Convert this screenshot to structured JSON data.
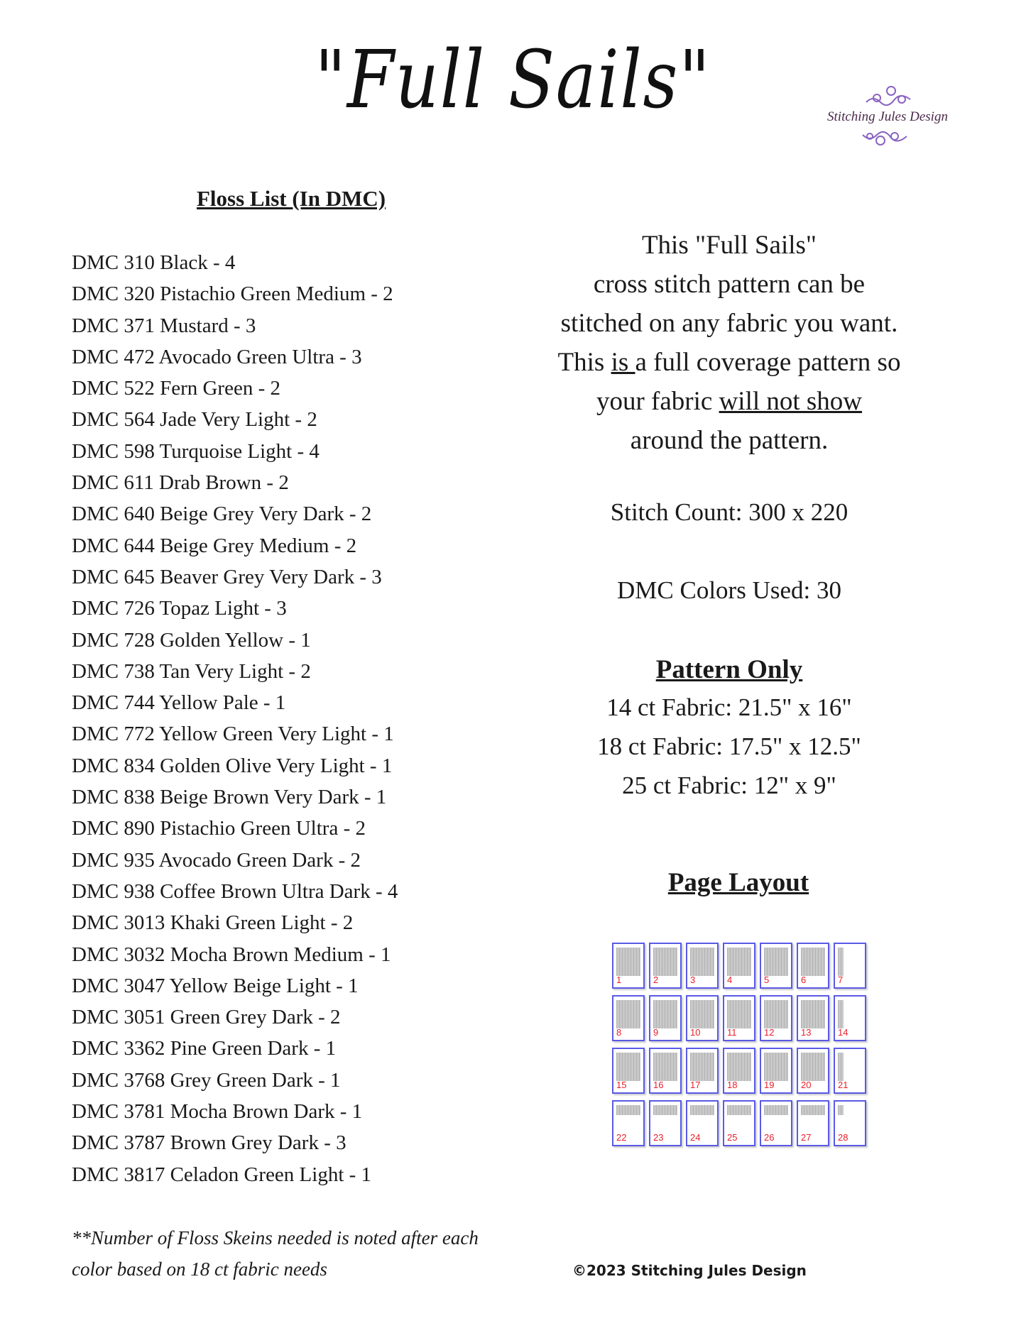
{
  "title": "\"Full Sails\"",
  "logo": {
    "text": "Stitching Jules Design",
    "color": "#7a4fb0"
  },
  "floss": {
    "heading": "Floss List (In DMC)",
    "items": [
      "DMC 310 Black - 4",
      "DMC 320 Pistachio Green Medium - 2",
      "DMC 371 Mustard - 3",
      "DMC 472 Avocado Green Ultra - 3",
      "DMC 522 Fern Green - 2",
      "DMC 564 Jade Very Light - 2",
      "DMC 598 Turquoise Light - 4",
      "DMC 611 Drab Brown - 2",
      "DMC 640 Beige Grey Very Dark - 2",
      "DMC 644 Beige Grey Medium - 2",
      "DMC 645 Beaver Grey Very Dark - 3",
      "DMC 726 Topaz Light - 3",
      "DMC 728 Golden Yellow - 1",
      "DMC 738 Tan Very Light - 2",
      "DMC 744 Yellow Pale - 1",
      "DMC 772 Yellow Green Very Light - 1",
      "DMC 834 Golden Olive Very Light - 1",
      "DMC 838 Beige Brown Very Dark - 1",
      "DMC 890 Pistachio Green Ultra - 2",
      "DMC 935 Avocado Green Dark - 2",
      "DMC 938 Coffee Brown Ultra Dark - 4",
      "DMC 3013 Khaki Green Light - 2",
      "DMC 3032 Mocha Brown Medium - 1",
      "DMC 3047 Yellow Beige Light - 1",
      "DMC 3051 Green Grey Dark - 2",
      "DMC 3362 Pine Green Dark - 1",
      "DMC 3768 Grey Green Dark - 1",
      "DMC 3781 Mocha Brown Dark - 1",
      "DMC 3787 Brown Grey Dark - 3",
      "DMC 3817 Celadon Green Light - 1"
    ],
    "footnote_1": "**Number of Floss Skeins needed is noted after each",
    "footnote_2": "color based on 18 ct fabric needs"
  },
  "description": {
    "l1": "This \"Full Sails\"",
    "l2": "cross stitch pattern can  be",
    "l3": "stitched on any fabric you want.",
    "l4a": "This ",
    "l4b": "is ",
    "l4c": "a full coverage  pattern  so",
    "l5a": "your fabric ",
    "l5b": "will not show",
    "l6": "around the pattern."
  },
  "stitch_count": "Stitch Count: 300 x 220",
  "colors_used": "DMC Colors Used: 30",
  "pattern_only": {
    "heading": "Pattern Only",
    "sizes": [
      "14 ct Fabric: 21.5\" x 16\"",
      "18 ct Fabric: 17.5\" x 12.5\"",
      "25 ct Fabric: 12\" x 9\""
    ]
  },
  "page_layout": {
    "heading": "Page Layout",
    "pages": [
      "1",
      "2",
      "3",
      "4",
      "5",
      "6",
      "7",
      "8",
      "9",
      "10",
      "11",
      "12",
      "13",
      "14",
      "15",
      "16",
      "17",
      "18",
      "19",
      "20",
      "21",
      "22",
      "23",
      "24",
      "25",
      "26",
      "27",
      "28"
    ]
  },
  "copyright": "©2023 Stitching Jules Design"
}
